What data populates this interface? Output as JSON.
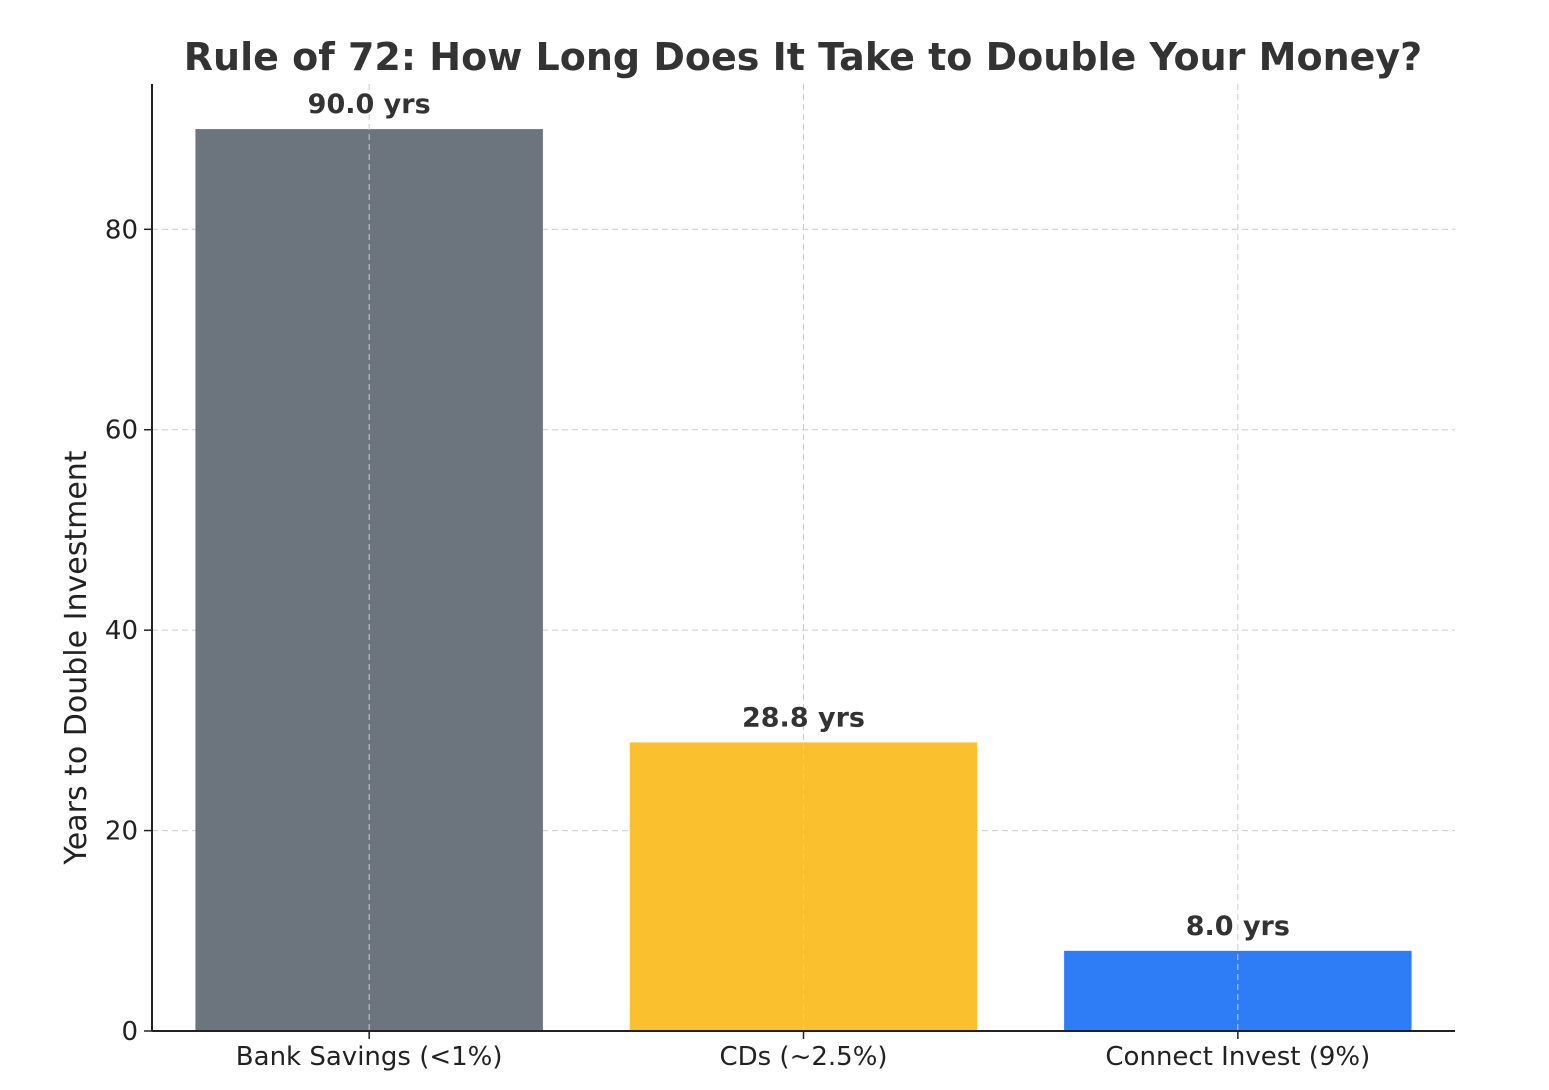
{
  "chart_data": {
    "type": "bar",
    "title": "Rule of 72: How Long Does It Take to Double Your Money?",
    "xlabel": "",
    "ylabel": "Years to Double Investment",
    "categories": [
      "Bank Savings (<1%)",
      "CDs (~2.5%)",
      "Connect Invest (9%)"
    ],
    "values": [
      90.0,
      28.8,
      8.0
    ],
    "value_labels": [
      "90.0 yrs",
      "28.8 yrs",
      "8.0 yrs"
    ],
    "colors": [
      "#6c757d",
      "#fbc02d",
      "#2f7df6"
    ],
    "ylim": [
      0,
      94.5
    ],
    "yticks": [
      0,
      20,
      40,
      60,
      80
    ],
    "grid": true,
    "legend": "none"
  }
}
